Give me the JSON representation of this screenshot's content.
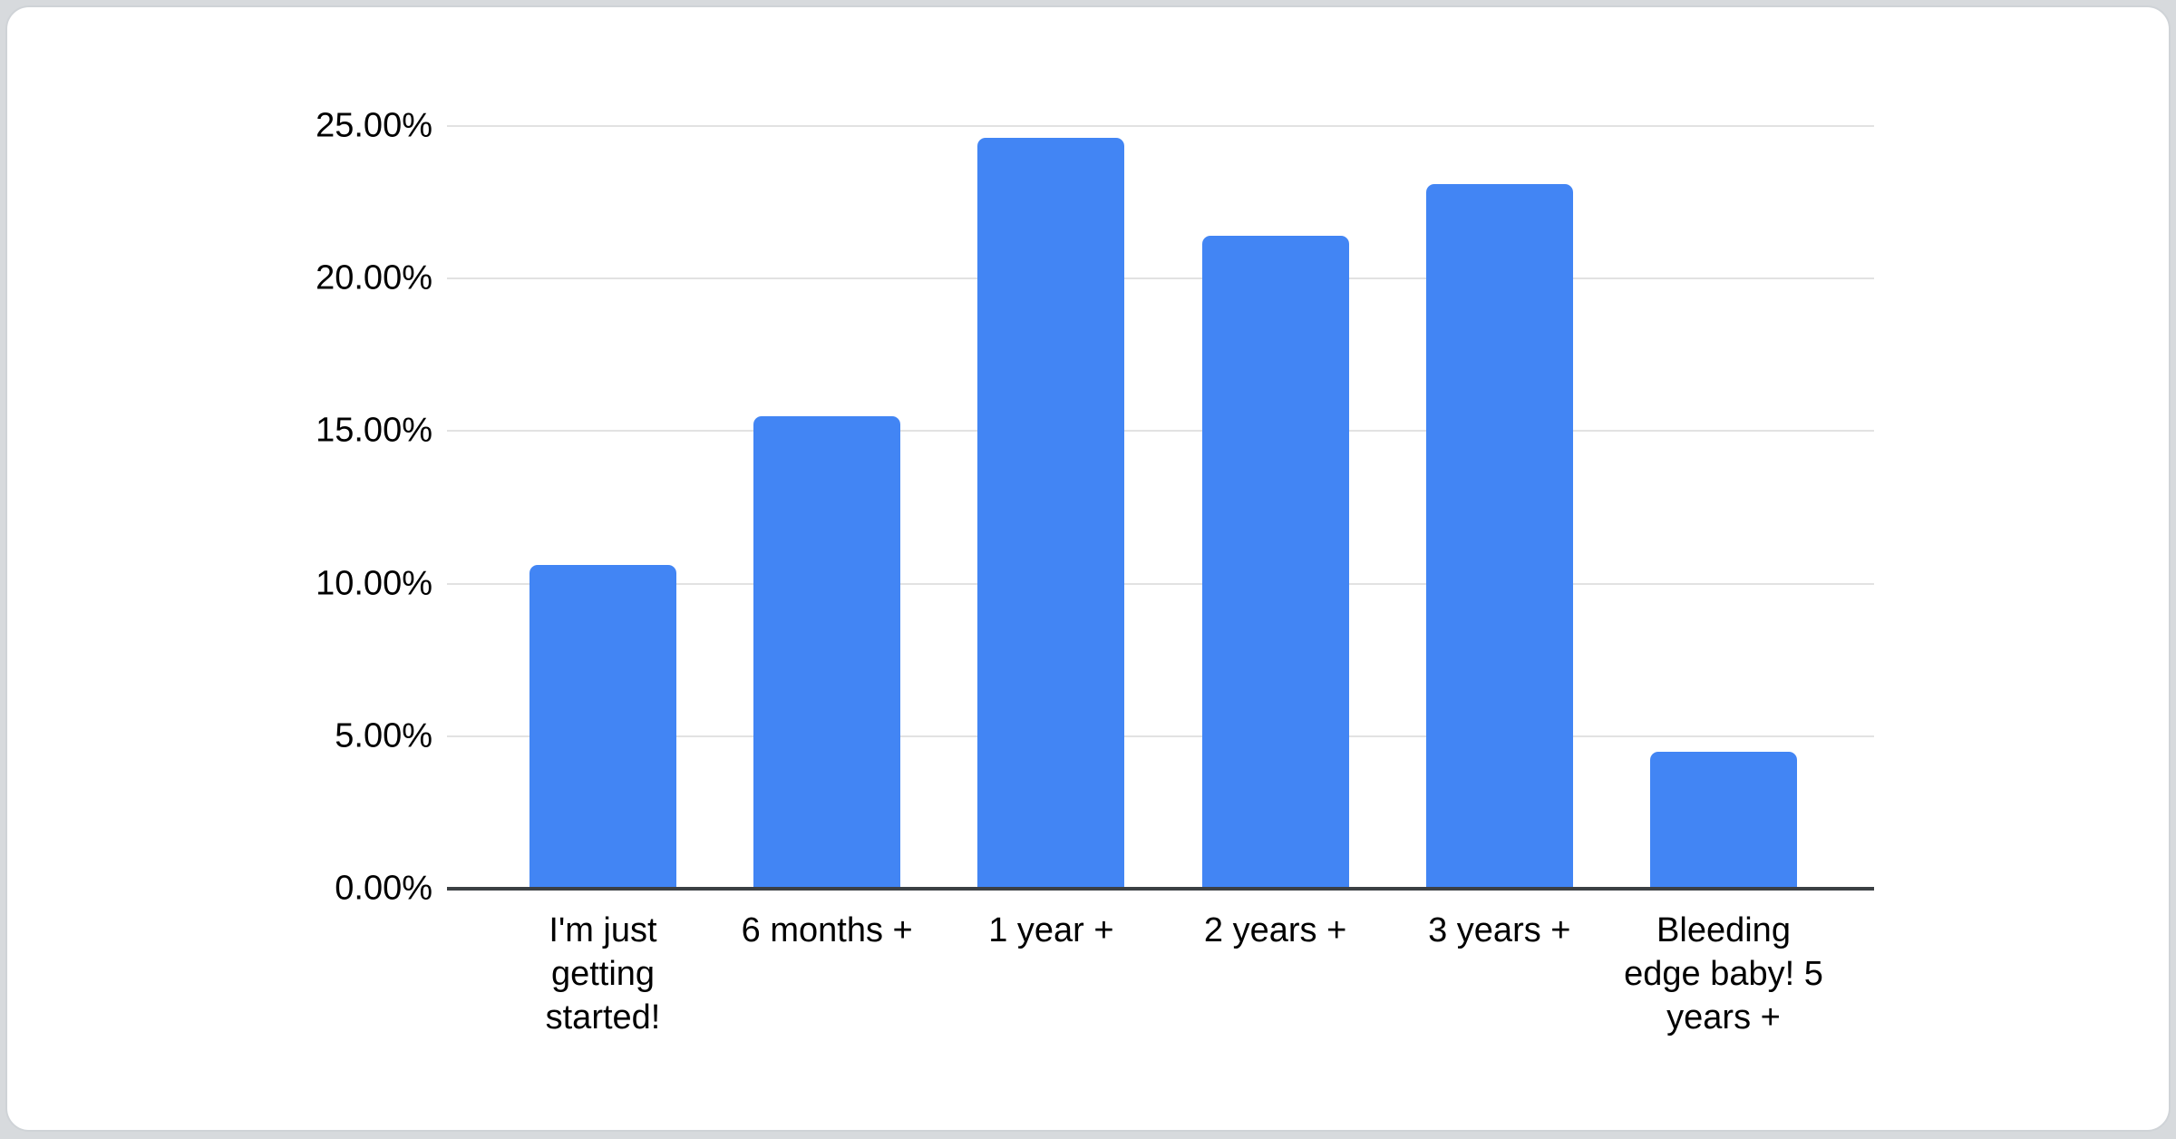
{
  "page": {
    "background_color": "#d7dadd",
    "card_color": "#ffffff"
  },
  "chart_data": {
    "type": "bar",
    "categories": [
      "I'm just getting started!",
      "6 months +",
      "1 year +",
      "2 years +",
      "3 years +",
      "Bleeding edge baby! 5 years +"
    ],
    "values": [
      10.6,
      15.5,
      24.6,
      21.4,
      23.1,
      4.5
    ],
    "value_unit": "%",
    "ylim": [
      0,
      25
    ],
    "y_tick_values": [
      0,
      5,
      10,
      15,
      20,
      25
    ],
    "y_tick_labels": [
      "0.00%",
      "5.00%",
      "10.00%",
      "15.00%",
      "20.00%",
      "25.00%"
    ],
    "grid": true,
    "legend_position": "none",
    "bar_color": "#4285f4",
    "gridline_color": "#e2e2e2",
    "axis_line_color": "#3c4043",
    "label_color": "#000000"
  }
}
